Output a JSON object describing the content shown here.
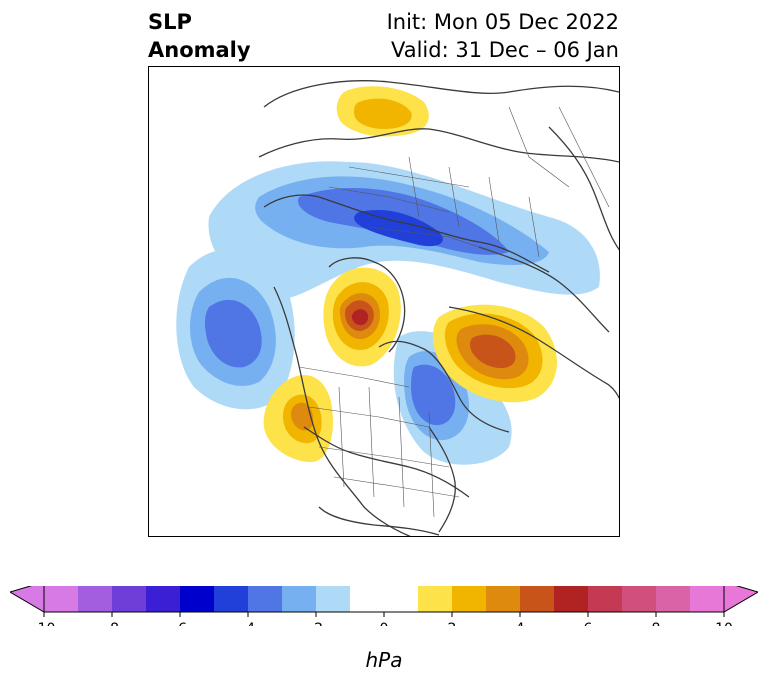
{
  "title": {
    "left_line1": "SLP",
    "left_line2": "Anomaly",
    "right_line1": "Init: Mon 05 Dec 2022",
    "right_line2": "Valid: 31 Dec – 06 Jan"
  },
  "colorbar": {
    "units": "hPa",
    "min": -10,
    "max": 10,
    "step": 1,
    "tick_labels": [
      "-10",
      "-8",
      "-6",
      "-4",
      "-2",
      "0",
      "2",
      "4",
      "6",
      "8",
      "10"
    ],
    "colors": [
      "#d87ae6",
      "#a35ee0",
      "#6f3ed9",
      "#3a1fd4",
      "#0000cd",
      "#2140d9",
      "#4f76e4",
      "#77b0f0",
      "#aedaf8",
      "#ffffff",
      "#ffffff",
      "#fde24a",
      "#f1b500",
      "#de8a0f",
      "#c85419",
      "#b12323",
      "#c33a52",
      "#d04f7d",
      "#da62a6",
      "#e878d8"
    ],
    "extend_low_color": "#d87ae6",
    "extend_high_color": "#e878d8"
  },
  "map": {
    "projection": "north-polar-stereographic",
    "features": [
      "coastlines",
      "country-borders",
      "us-state-borders"
    ]
  }
}
